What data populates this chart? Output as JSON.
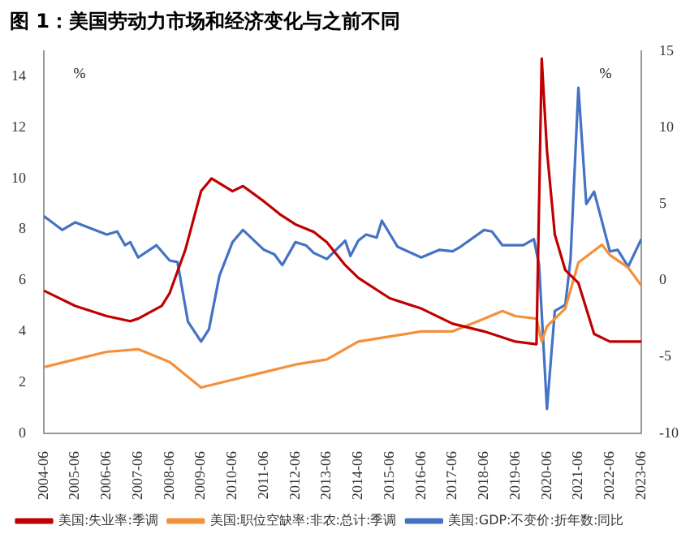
{
  "chart_data": {
    "type": "line",
    "title": "图 1：美国劳动力市场和经济变化与之前不同",
    "ylabel": "%",
    "y2label": "%",
    "xlim": [
      "2004-06",
      "2023-06"
    ],
    "xticks": [
      "2004-06",
      "2005-06",
      "2006-06",
      "2007-06",
      "2008-06",
      "2009-06",
      "2010-06",
      "2011-06",
      "2012-06",
      "2013-06",
      "2014-06",
      "2015-06",
      "2016-06",
      "2017-06",
      "2018-06",
      "2019-06",
      "2020-06",
      "2021-06",
      "2022-06",
      "2023-06"
    ],
    "ylim": [
      0,
      15
    ],
    "yticks": [
      0,
      2,
      4,
      6,
      8,
      10,
      12,
      14
    ],
    "y2lim": [
      -10,
      15
    ],
    "y2ticks": [
      -10,
      -5,
      0,
      5,
      10,
      15
    ],
    "grid": false,
    "legend": "bottom",
    "marker": "none",
    "line_style": "solid",
    "series": [
      {
        "name": "美国:失业率:季调",
        "color": "#c00000",
        "x": [
          "2004-06",
          "2005-06",
          "2006-06",
          "2007-03",
          "2007-06",
          "2008-03",
          "2008-06",
          "2008-12",
          "2009-06",
          "2009-10",
          "2010-06",
          "2010-10",
          "2011-06",
          "2011-12",
          "2012-06",
          "2013-01",
          "2013-06",
          "2014-01",
          "2014-06",
          "2015-06",
          "2016-06",
          "2017-06",
          "2018-06",
          "2019-06",
          "2020-02",
          "2020-04",
          "2020-06",
          "2020-09",
          "2021-01",
          "2021-06",
          "2021-12",
          "2022-06",
          "2023-06"
        ],
        "values": [
          5.6,
          5.0,
          4.6,
          4.4,
          4.5,
          5.0,
          5.5,
          7.2,
          9.5,
          10.0,
          9.5,
          9.7,
          9.1,
          8.6,
          8.2,
          7.9,
          7.5,
          6.6,
          6.1,
          5.3,
          4.9,
          4.3,
          4.0,
          3.6,
          3.5,
          14.7,
          11.1,
          7.8,
          6.4,
          5.9,
          3.9,
          3.6,
          3.6
        ]
      },
      {
        "name": "美国:职位空缺率:非农:总计:季调",
        "color": "#f4903c",
        "x": [
          "2004-06",
          "2005-06",
          "2006-06",
          "2007-06",
          "2008-06",
          "2009-06",
          "2010-06",
          "2011-06",
          "2012-06",
          "2013-06",
          "2014-06",
          "2015-06",
          "2016-06",
          "2017-06",
          "2018-06",
          "2019-01",
          "2019-06",
          "2020-02",
          "2020-04",
          "2020-06",
          "2021-01",
          "2021-06",
          "2022-03",
          "2022-06",
          "2023-01",
          "2023-06"
        ],
        "values": [
          2.6,
          2.9,
          3.2,
          3.3,
          2.8,
          1.8,
          2.1,
          2.4,
          2.7,
          2.9,
          3.6,
          3.8,
          4.0,
          4.0,
          4.5,
          4.8,
          4.6,
          4.5,
          3.6,
          4.2,
          4.9,
          6.7,
          7.4,
          7.0,
          6.5,
          5.8
        ]
      },
      {
        "name": "美国:GDP:不变价:折年数:同比",
        "color": "#4472c4",
        "axis": "y2",
        "x": [
          "2004-06",
          "2005-01",
          "2005-06",
          "2006-06",
          "2006-10",
          "2007-01",
          "2007-03",
          "2007-06",
          "2008-01",
          "2008-06",
          "2008-09",
          "2009-01",
          "2009-06",
          "2009-09",
          "2010-01",
          "2010-06",
          "2010-10",
          "2011-06",
          "2011-10",
          "2012-01",
          "2012-06",
          "2012-10",
          "2013-01",
          "2013-06",
          "2014-01",
          "2014-03",
          "2014-06",
          "2014-09",
          "2015-01",
          "2015-03",
          "2015-09",
          "2016-06",
          "2017-01",
          "2017-06",
          "2017-09",
          "2018-06",
          "2018-09",
          "2019-01",
          "2019-09",
          "2020-01",
          "2020-03",
          "2020-06",
          "2020-09",
          "2021-01",
          "2021-03",
          "2021-06",
          "2021-09",
          "2021-12",
          "2022-06",
          "2022-09",
          "2023-01",
          "2023-06"
        ],
        "values": [
          4.2,
          3.3,
          3.8,
          3.0,
          3.2,
          2.3,
          2.5,
          1.5,
          2.3,
          1.3,
          1.2,
          -2.7,
          -4.0,
          -3.2,
          0.3,
          2.5,
          3.3,
          2.0,
          1.7,
          1.0,
          2.5,
          2.3,
          1.8,
          1.4,
          2.6,
          1.6,
          2.6,
          3.0,
          2.8,
          3.9,
          2.2,
          1.5,
          2.0,
          1.9,
          2.2,
          3.3,
          3.2,
          2.3,
          2.3,
          2.7,
          1.0,
          -8.4,
          -2.0,
          -1.6,
          1.4,
          12.6,
          5.0,
          5.8,
          1.9,
          2.0,
          0.9,
          2.7
        ]
      }
    ]
  }
}
